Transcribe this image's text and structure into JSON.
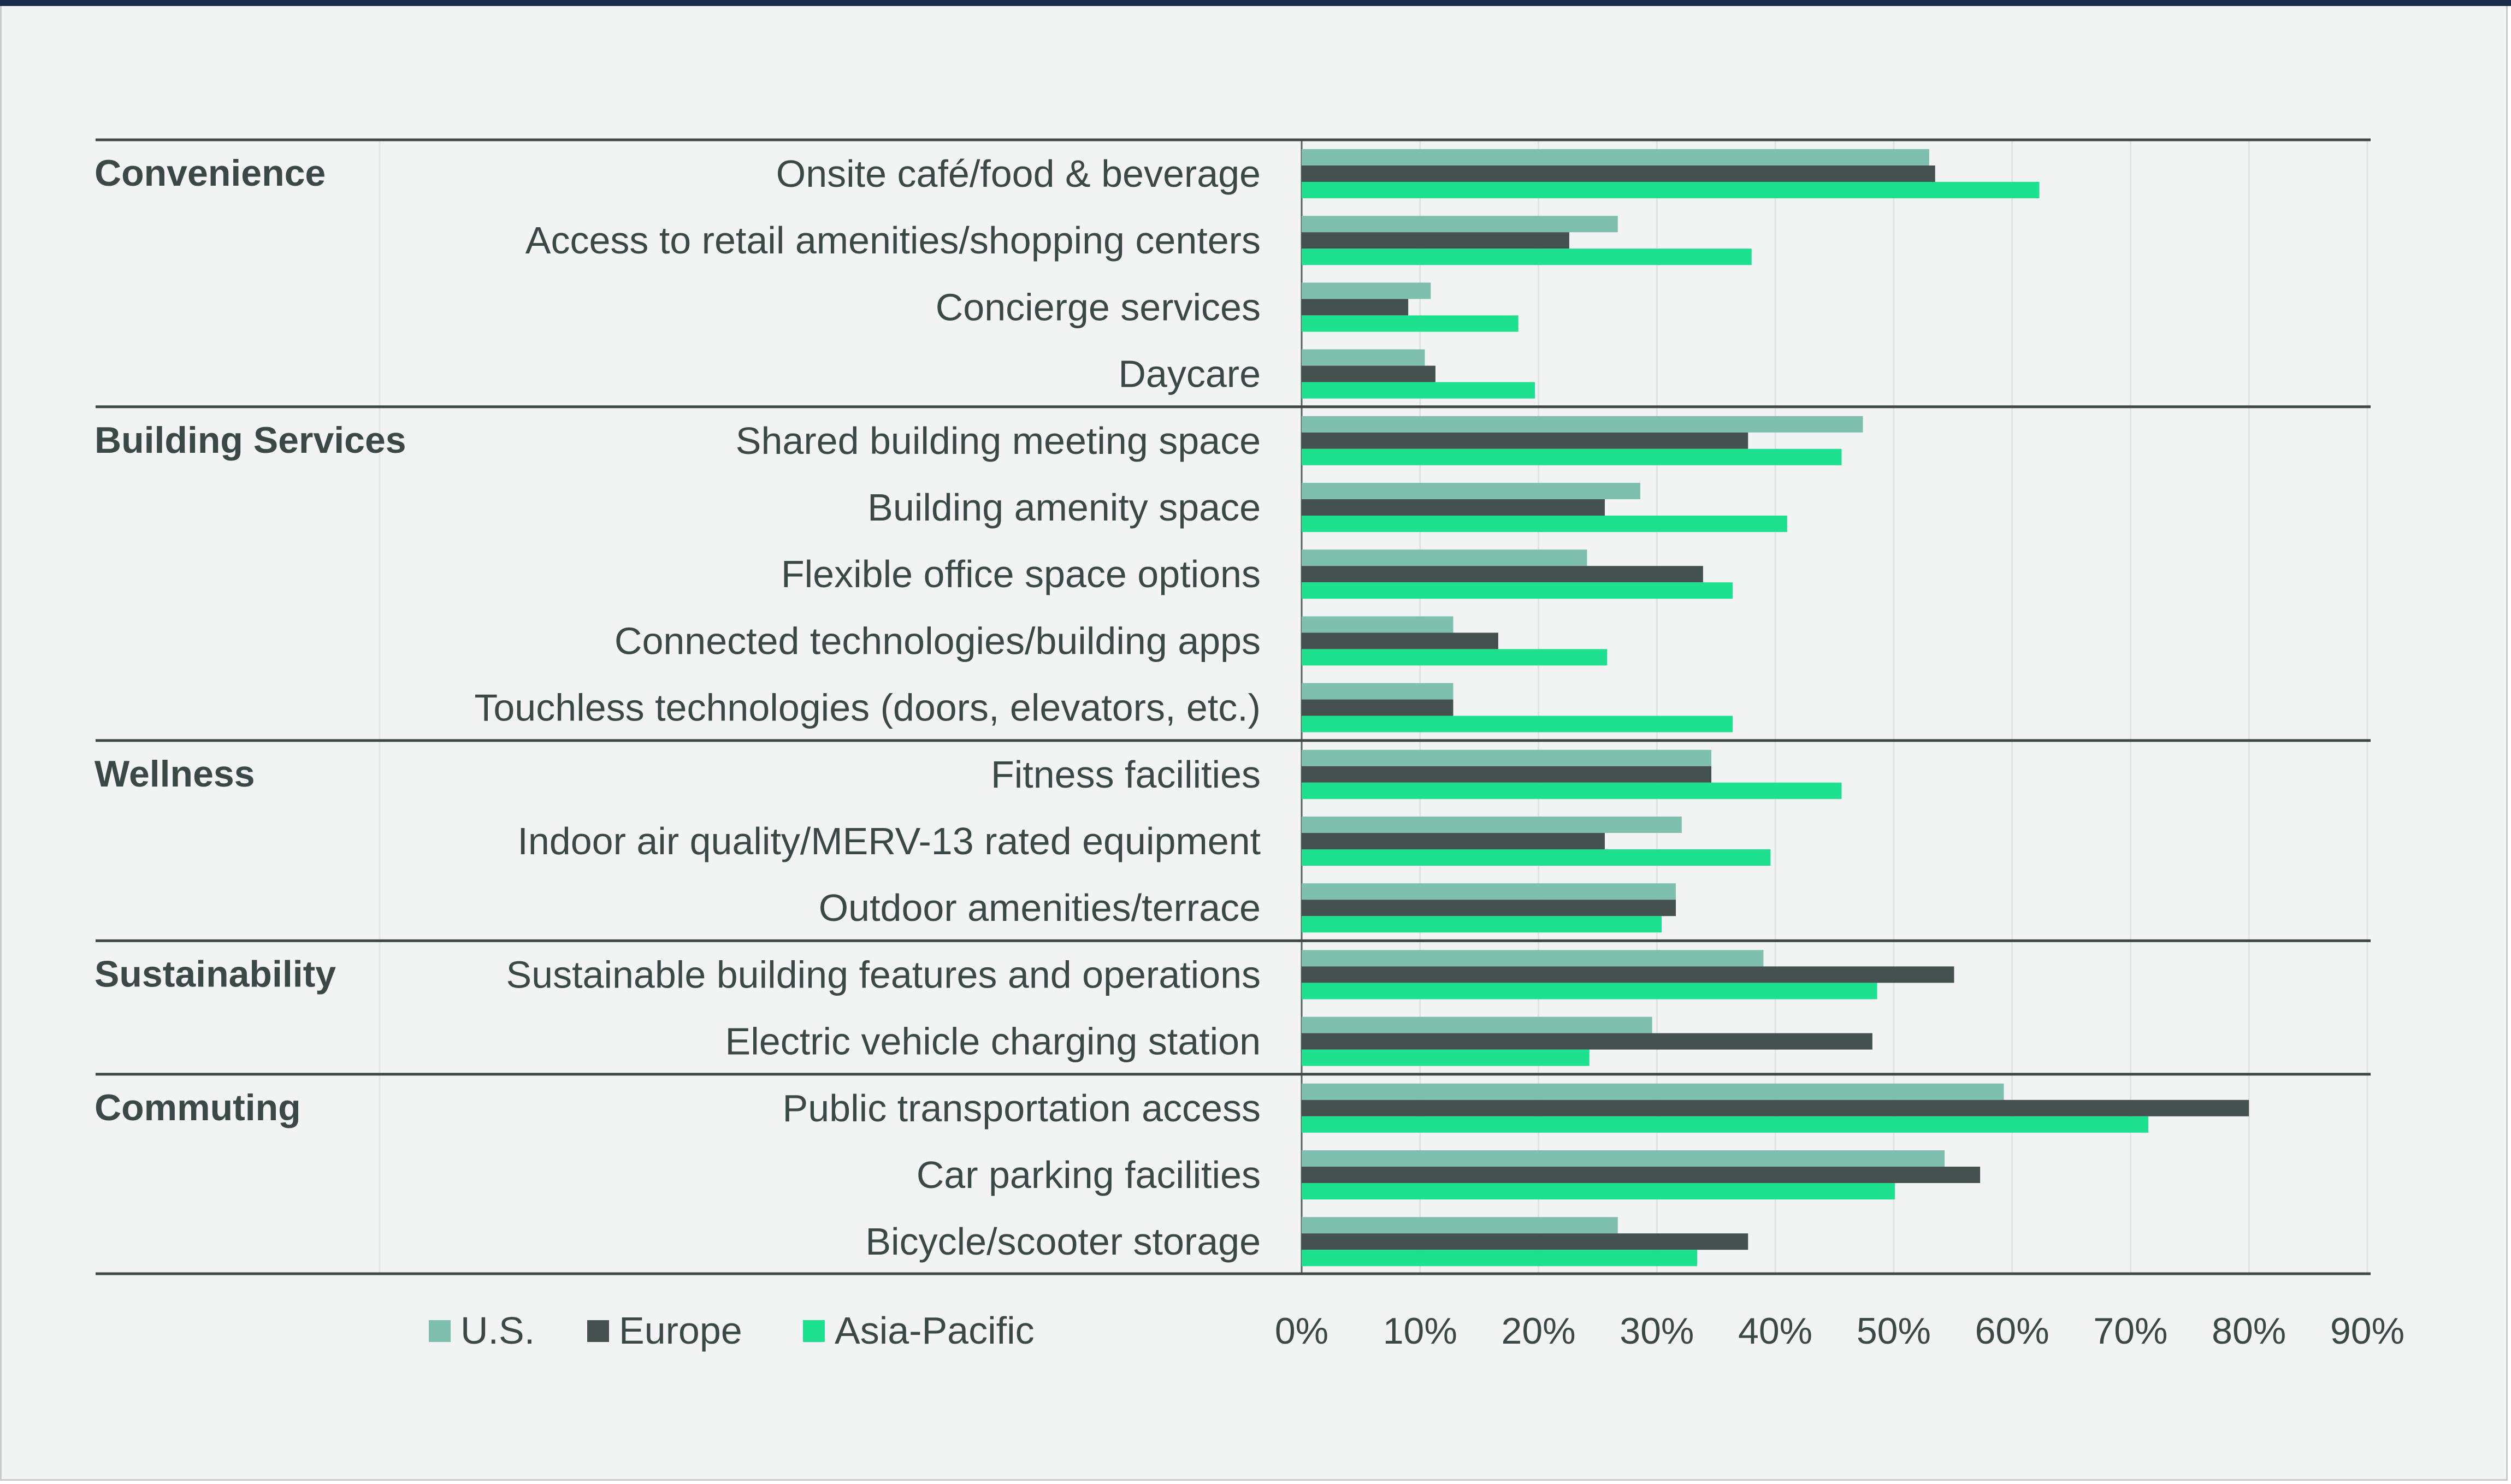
{
  "chart_data": {
    "type": "bar",
    "orientation": "horizontal",
    "title": "",
    "xlabel": "",
    "ylabel": "",
    "xlim": [
      0,
      90
    ],
    "x_ticks": [
      "0%",
      "10%",
      "20%",
      "30%",
      "40%",
      "50%",
      "60%",
      "70%",
      "80%",
      "90%"
    ],
    "grid": true,
    "legend_position": "bottom-left",
    "series": [
      {
        "name": "U.S.",
        "color": "#7fbfae"
      },
      {
        "name": "Europe",
        "color": "#44514f"
      },
      {
        "name": "Asia-Pacific",
        "color": "#1de18f"
      }
    ],
    "groups": [
      {
        "name": "Convenience",
        "items": [
          {
            "label": "Onsite café/food & beverage",
            "values": [
              53,
              53.5,
              62.3
            ]
          },
          {
            "label": "Access to retail amenities/shopping centers",
            "values": [
              26.7,
              22.6,
              38
            ]
          },
          {
            "label": "Concierge services",
            "values": [
              10.9,
              9,
              18.3
            ]
          },
          {
            "label": "Daycare",
            "values": [
              10.4,
              11.3,
              19.7
            ]
          }
        ]
      },
      {
        "name": "Building Services",
        "items": [
          {
            "label": "Shared building meeting space",
            "values": [
              47.4,
              37.7,
              45.6
            ]
          },
          {
            "label": "Building amenity space",
            "values": [
              28.6,
              25.6,
              41
            ]
          },
          {
            "label": "Flexible office space options",
            "values": [
              24.1,
              33.9,
              36.4
            ]
          },
          {
            "label": "Connected technologies/building apps",
            "values": [
              12.8,
              16.6,
              25.8
            ]
          },
          {
            "label": "Touchless technologies (doors, elevators, etc.)",
            "values": [
              12.8,
              12.8,
              36.4
            ]
          }
        ]
      },
      {
        "name": "Wellness",
        "items": [
          {
            "label": "Fitness facilities",
            "values": [
              34.6,
              34.6,
              45.6
            ]
          },
          {
            "label": "Indoor air quality/MERV-13 rated equipment",
            "values": [
              32.1,
              25.6,
              39.6
            ]
          },
          {
            "label": "Outdoor amenities/terrace",
            "values": [
              31.6,
              31.6,
              30.4
            ]
          }
        ]
      },
      {
        "name": "Sustainability",
        "items": [
          {
            "label": "Sustainable building features and operations",
            "values": [
              39,
              55.1,
              48.6
            ]
          },
          {
            "label": "Electric vehicle charging station",
            "values": [
              29.6,
              48.2,
              24.3
            ]
          }
        ]
      },
      {
        "name": "Commuting",
        "items": [
          {
            "label": "Public transportation access",
            "values": [
              59.3,
              80,
              71.5
            ]
          },
          {
            "label": "Car parking facilities",
            "values": [
              54.3,
              57.3,
              50.1
            ]
          },
          {
            "label": "Bicycle/scooter storage",
            "values": [
              26.7,
              37.7,
              33.4
            ]
          }
        ]
      }
    ]
  }
}
